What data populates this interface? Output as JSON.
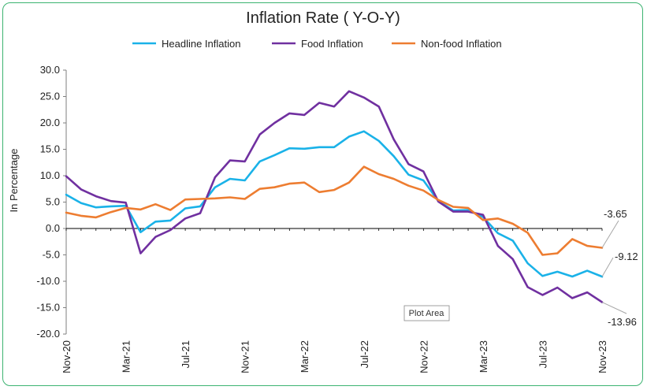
{
  "chart_data": {
    "type": "line",
    "title": "Inflation Rate ( Y-O-Y)",
    "ylabel": "In Percentage",
    "xlabel": "",
    "ylim": [
      -20,
      30
    ],
    "yticks": [
      "30.0",
      "25.0",
      "20.0",
      "15.0",
      "10.0",
      "5.0",
      "0.0",
      "-5.0",
      "-10.0",
      "-15.0",
      "-20.0"
    ],
    "categories": [
      "Nov-20",
      "Dec-20",
      "Jan-21",
      "Feb-21",
      "Mar-21",
      "Apr-21",
      "May-21",
      "Jun-21",
      "Jul-21",
      "Aug-21",
      "Sep-21",
      "Oct-21",
      "Nov-21",
      "Dec-21",
      "Jan-22",
      "Feb-22",
      "Mar-22",
      "Apr-22",
      "May-22",
      "Jun-22",
      "Jul-22",
      "Aug-22",
      "Sep-22",
      "Oct-22",
      "Nov-22",
      "Dec-22",
      "Jan-23",
      "Feb-23",
      "Mar-23",
      "Apr-23",
      "May-23",
      "Jun-23",
      "Jul-23",
      "Aug-23",
      "Sep-23",
      "Oct-23",
      "Nov-23"
    ],
    "x_tick_labels": [
      "Nov-20",
      "Mar-21",
      "Jul-21",
      "Nov-21",
      "Mar-22",
      "Jul-22",
      "Nov-22",
      "Mar-23",
      "Jul-23",
      "Nov-23"
    ],
    "legend_position": "top",
    "grid": false,
    "series": [
      {
        "name": "Headline Inflation",
        "color": "#1ab2e8",
        "values": [
          6.4,
          4.8,
          4.0,
          4.2,
          4.3,
          -0.7,
          1.3,
          1.5,
          3.8,
          4.2,
          7.8,
          9.4,
          9.1,
          12.7,
          13.9,
          15.2,
          15.1,
          15.4,
          15.4,
          17.4,
          18.4,
          16.6,
          13.7,
          10.2,
          9.1,
          5.2,
          3.4,
          3.5,
          2.2,
          -0.9,
          -2.3,
          -6.6,
          -9.0,
          -8.2,
          -9.1,
          -8.0,
          -9.12
        ]
      },
      {
        "name": "Food Inflation",
        "color": "#7030a0",
        "values": [
          9.9,
          7.4,
          6.1,
          5.2,
          4.9,
          -4.7,
          -1.6,
          -0.3,
          1.9,
          2.9,
          9.7,
          12.9,
          12.7,
          17.8,
          20.0,
          21.8,
          21.5,
          23.8,
          23.1,
          26.0,
          24.8,
          23.1,
          16.9,
          12.2,
          10.8,
          5.1,
          3.2,
          3.2,
          2.6,
          -3.3,
          -5.8,
          -11.1,
          -12.6,
          -11.2,
          -13.2,
          -12.1,
          -13.96
        ]
      },
      {
        "name": "Non-food Inflation",
        "color": "#ed7d31",
        "values": [
          3.0,
          2.4,
          2.1,
          3.1,
          3.9,
          3.6,
          4.6,
          3.5,
          5.5,
          5.6,
          5.7,
          5.9,
          5.6,
          7.5,
          7.8,
          8.5,
          8.7,
          6.9,
          7.3,
          8.7,
          11.7,
          10.3,
          9.4,
          8.1,
          7.2,
          5.4,
          4.1,
          3.9,
          1.6,
          1.9,
          0.9,
          -0.8,
          -5.0,
          -4.7,
          -2.0,
          -3.3,
          -3.65
        ]
      }
    ],
    "annotations": [
      {
        "text": "-3.65",
        "series": "Non-food Inflation"
      },
      {
        "text": "-9.12",
        "series": "Headline Inflation"
      },
      {
        "text": "-13.96",
        "series": "Food Inflation"
      }
    ],
    "tooltip": "Plot Area"
  }
}
